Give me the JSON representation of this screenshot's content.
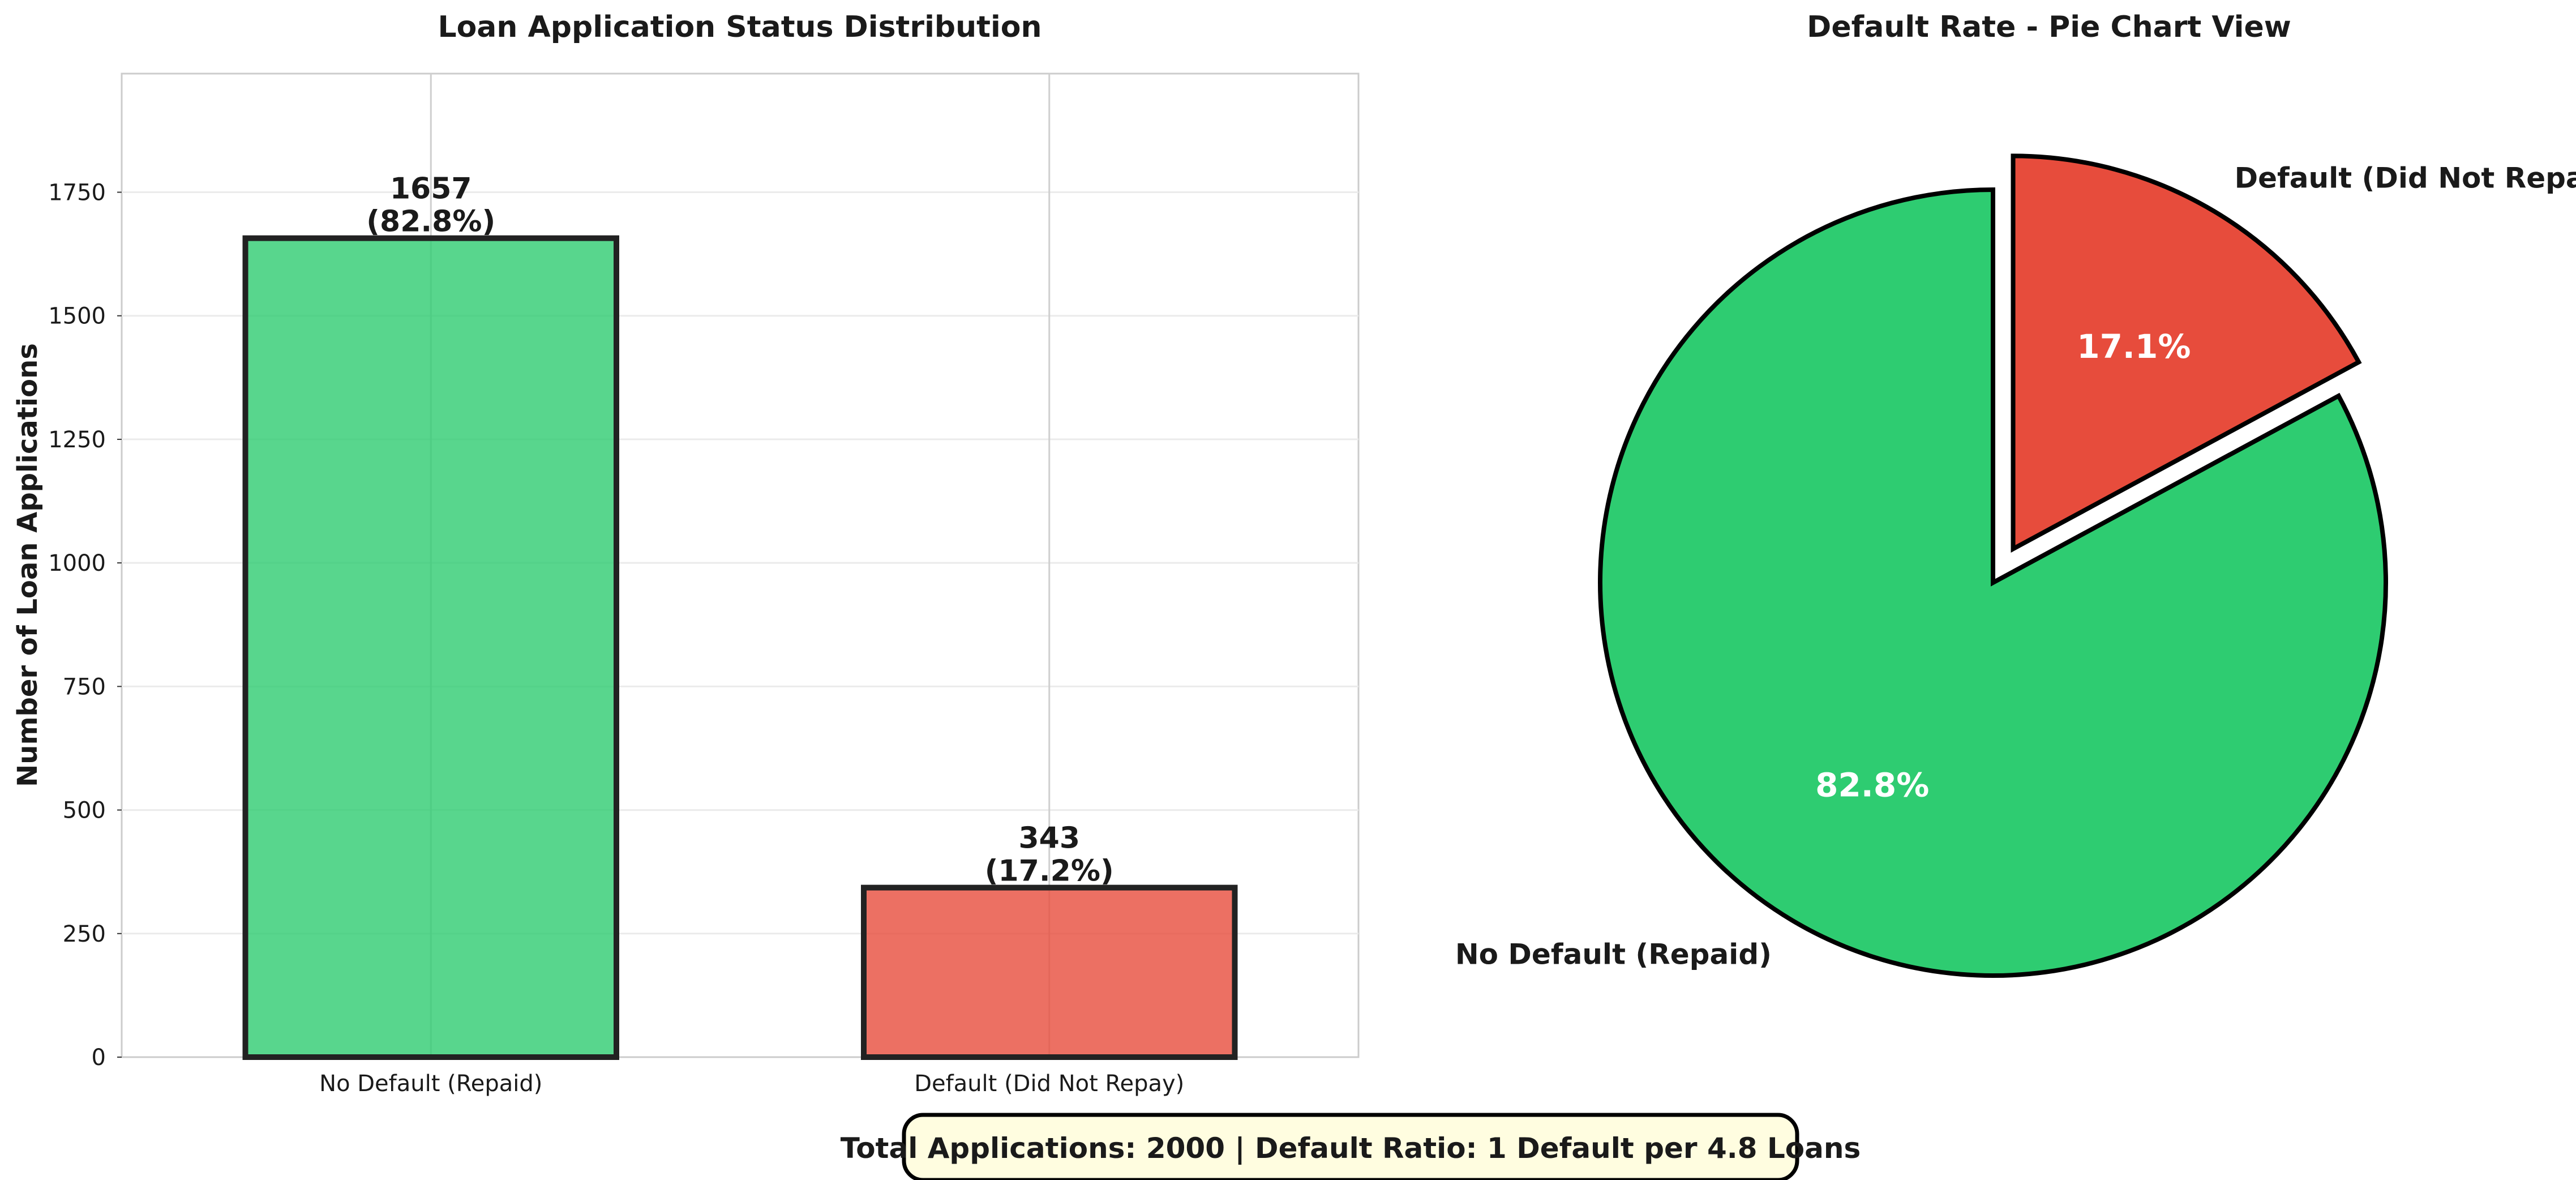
{
  "chart_data": [
    {
      "type": "bar",
      "title": "Loan Application Status Distribution",
      "xlabel": "",
      "ylabel": "Number of Loan Applications",
      "categories": [
        "No Default (Repaid)",
        "Default (Did Not Repay)"
      ],
      "values": [
        1657,
        343
      ],
      "value_labels": [
        "1657\n(82.8%)",
        "343\n(17.2%)"
      ],
      "ylim": [
        0,
        1990
      ],
      "yticks": [
        0,
        250,
        500,
        750,
        1000,
        1250,
        1500,
        1750
      ],
      "grid": true,
      "colors": [
        "#2ecc71",
        "#e74c3c"
      ]
    },
    {
      "type": "pie",
      "title": "Default Rate - Pie Chart View",
      "labels": [
        "No Default (Repaid)",
        "Default (Did Not Repay)"
      ],
      "values": [
        82.8,
        17.1
      ],
      "percent_labels": [
        "82.8%",
        "17.1%"
      ],
      "exploded": [
        false,
        true
      ],
      "colors": [
        "#2ecc71",
        "#e74c3c"
      ]
    }
  ],
  "footer": {
    "text": "Total Applications: 2000 | Default Ratio: 1 Default per 4.8 Loans",
    "background": "#fffde0"
  }
}
